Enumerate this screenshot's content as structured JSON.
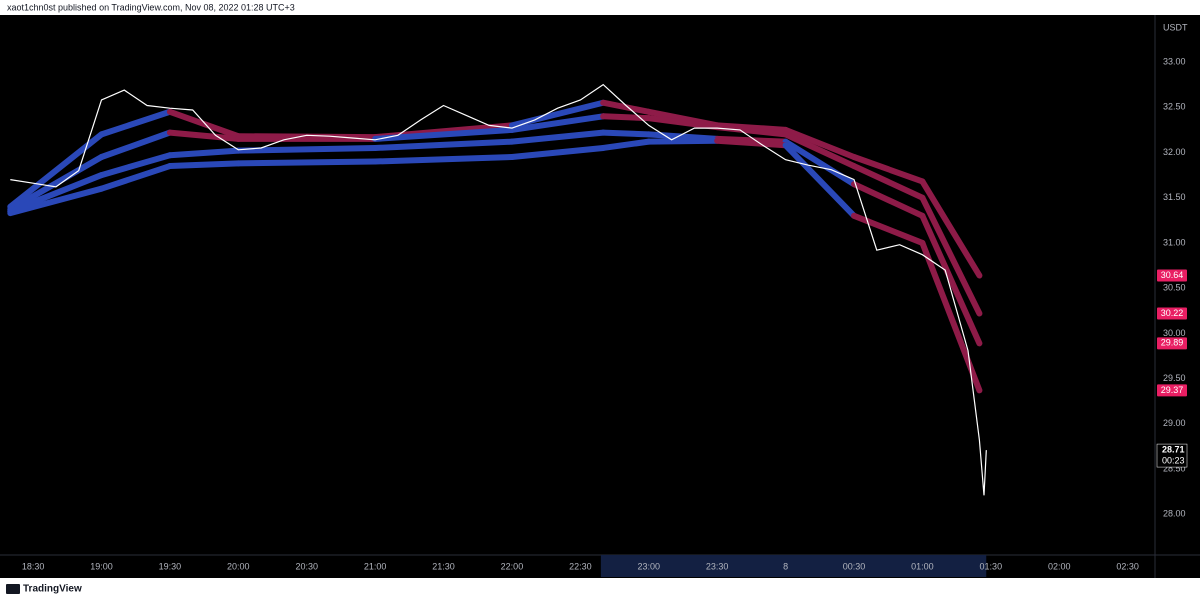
{
  "header": {
    "text": "xaot1chn0st published on TradingView.com, Nov 08, 2022 01:28 UTC+3"
  },
  "footer": {
    "brand": "TradingView"
  },
  "chart_data": {
    "type": "line",
    "y_axis_label": "USDT",
    "countdown": "00:23",
    "up_color": "#2a48b8",
    "down_color": "#8e1b48",
    "price_color": "#ffffff",
    "label_color": "#e91e63",
    "xlim": [
      "18:19",
      "02:42"
    ],
    "xticks": [
      "18:30",
      "19:00",
      "19:30",
      "20:00",
      "20:30",
      "21:00",
      "21:30",
      "22:00",
      "22:30",
      "23:00",
      "23:30",
      {
        "value": "00:00",
        "label": "8"
      },
      "00:30",
      "01:00",
      "01:30",
      "02:00",
      "02:30"
    ],
    "highlight_range": [
      "22:39",
      "01:28"
    ],
    "ylim": [
      27.55,
      33.52
    ],
    "yticks": [
      {
        "value": 28,
        "label": "28.00"
      },
      {
        "value": 28.5,
        "label": "28.50"
      },
      {
        "value": 29,
        "label": "29.00"
      },
      {
        "value": 29.5,
        "label": "29.50"
      },
      {
        "value": 30,
        "label": "30.00"
      },
      {
        "value": 30.5,
        "label": "30.50"
      },
      {
        "value": 31,
        "label": "31.00"
      },
      {
        "value": 31.5,
        "label": "31.50"
      },
      {
        "value": 32,
        "label": "32.00"
      },
      {
        "value": 32.5,
        "label": "32.50"
      },
      {
        "value": 33,
        "label": "33.00"
      }
    ],
    "series": [
      {
        "x": [
          "18:20",
          "18:30",
          "18:40",
          "18:50",
          "19:00",
          "19:10",
          "19:20",
          "19:30",
          "19:40",
          "19:50",
          "20:00",
          "20:10",
          "20:20",
          "20:30",
          "20:40",
          "20:50",
          "21:00",
          "21:10",
          "21:20",
          "21:30",
          "21:40",
          "21:50",
          "22:00",
          "22:10",
          "22:20",
          "22:30",
          "22:40",
          "22:50",
          "23:00",
          "23:10",
          "23:20",
          "23:30",
          "23:40",
          "23:50",
          "00:00",
          "00:10",
          "00:20",
          "00:30",
          "00:40",
          "00:50",
          "01:00",
          "01:10",
          "01:20",
          "01:25",
          "01:27",
          "01:28"
        ],
        "values": [
          31.7,
          31.66,
          31.62,
          31.8,
          32.58,
          32.69,
          32.52,
          32.49,
          32.47,
          32.19,
          32.03,
          32.05,
          32.14,
          32.19,
          32.18,
          32.16,
          32.14,
          32.19,
          32.36,
          32.52,
          32.41,
          32.3,
          32.27,
          32.36,
          32.49,
          32.58,
          32.75,
          32.52,
          32.3,
          32.14,
          32.27,
          32.27,
          32.25,
          32.08,
          31.92,
          31.86,
          31.81,
          31.7,
          30.92,
          30.98,
          30.87,
          30.7,
          29.81,
          28.82,
          28.21,
          28.71
        ]
      },
      {
        "x": [
          "18:20",
          "19:00",
          "19:30",
          "20:00",
          "21:00",
          "22:00",
          "22:40",
          "23:00",
          "23:30",
          "00:00",
          "00:30",
          "01:00",
          "01:25"
        ],
        "values": [
          31.4,
          32.2,
          32.45,
          32.18,
          32.17,
          32.3,
          32.55,
          32.45,
          32.3,
          32.25,
          31.95,
          31.68,
          30.64
        ]
      },
      {
        "x": [
          "18:20",
          "19:00",
          "19:30",
          "20:00",
          "21:00",
          "22:00",
          "22:40",
          "23:00",
          "23:30",
          "00:00",
          "00:30",
          "01:00",
          "01:25"
        ],
        "values": [
          31.37,
          31.95,
          32.22,
          32.15,
          32.15,
          32.25,
          32.4,
          32.38,
          32.28,
          32.2,
          31.85,
          31.5,
          30.22
        ]
      },
      {
        "x": [
          "18:20",
          "19:00",
          "19:30",
          "20:00",
          "21:00",
          "22:00",
          "22:40",
          "23:00",
          "23:30",
          "00:00",
          "00:30",
          "01:00",
          "01:25"
        ],
        "values": [
          31.35,
          31.75,
          31.97,
          32.02,
          32.05,
          32.12,
          32.22,
          32.2,
          32.15,
          32.12,
          31.65,
          31.3,
          29.89
        ]
      },
      {
        "x": [
          "18:20",
          "19:00",
          "19:30",
          "20:00",
          "21:00",
          "22:00",
          "22:40",
          "23:00",
          "23:30",
          "00:00",
          "00:30",
          "01:00",
          "01:25"
        ],
        "values": [
          31.33,
          31.6,
          31.85,
          31.88,
          31.9,
          31.95,
          32.05,
          32.12,
          32.13,
          32.08,
          31.3,
          31.0,
          29.37
        ]
      }
    ]
  }
}
